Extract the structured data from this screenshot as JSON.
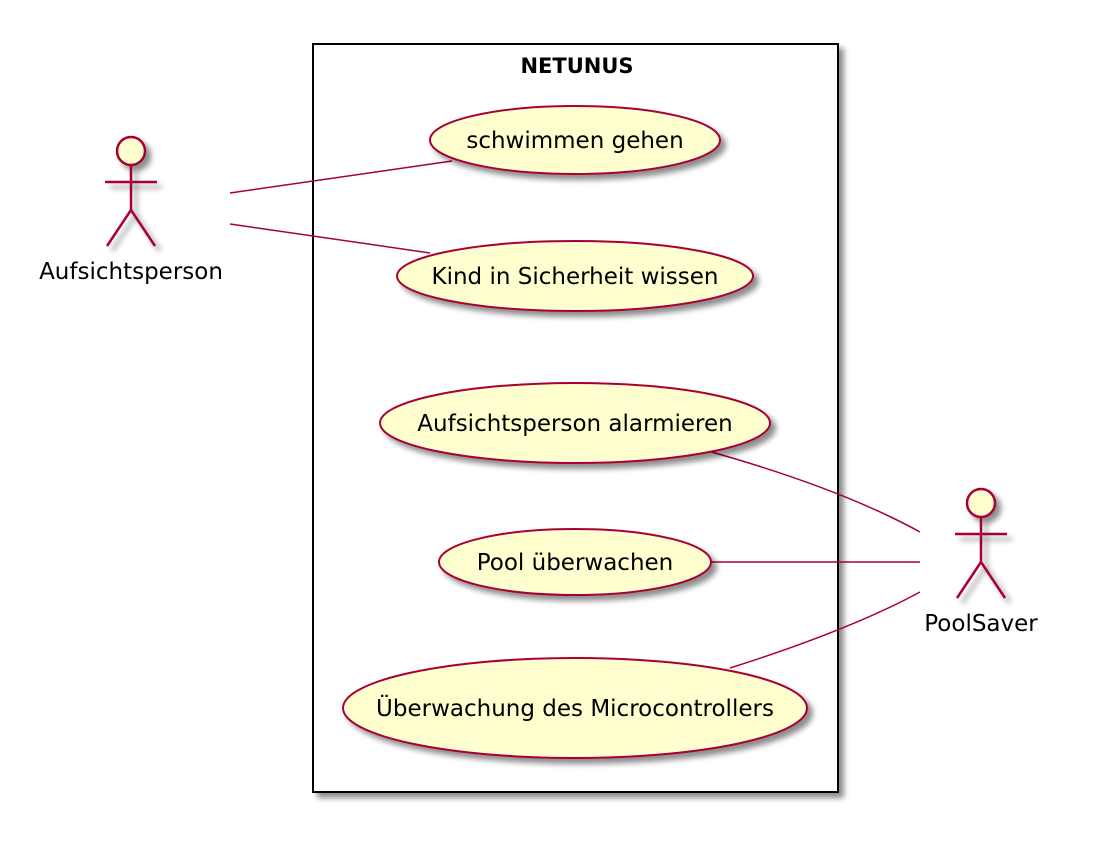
{
  "system": {
    "title": "NETUNUS"
  },
  "actors": [
    {
      "id": "aufsichtsperson",
      "label": "Aufsichtsperson"
    },
    {
      "id": "poolsaver",
      "label": "PoolSaver"
    }
  ],
  "use_cases": [
    {
      "id": "schwimmen",
      "label": "schwimmen gehen"
    },
    {
      "id": "kind",
      "label": "Kind in Sicherheit wissen"
    },
    {
      "id": "alarmieren",
      "label": "Aufsichtsperson alarmieren"
    },
    {
      "id": "pool",
      "label": "Pool überwachen"
    },
    {
      "id": "ueberwachung",
      "label": "Überwachung des Microcontrollers"
    }
  ],
  "associations": [
    {
      "actor": "aufsichtsperson",
      "use_case": "schwimmen"
    },
    {
      "actor": "aufsichtsperson",
      "use_case": "kind"
    },
    {
      "actor": "poolsaver",
      "use_case": "alarmieren"
    },
    {
      "actor": "poolsaver",
      "use_case": "pool"
    },
    {
      "actor": "poolsaver",
      "use_case": "ueberwachung"
    }
  ],
  "colors": {
    "use_case_fill": "#FEFECE",
    "stroke": "#A80036",
    "boundary": "#000000",
    "shadow": "#b0b0b0"
  }
}
